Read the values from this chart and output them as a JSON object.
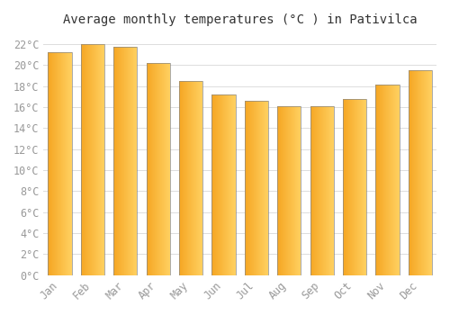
{
  "title": "Average monthly temperatures (°C ) in Pativilca",
  "months": [
    "Jan",
    "Feb",
    "Mar",
    "Apr",
    "May",
    "Jun",
    "Jul",
    "Aug",
    "Sep",
    "Oct",
    "Nov",
    "Dec"
  ],
  "values": [
    21.2,
    22.0,
    21.7,
    20.2,
    18.5,
    17.2,
    16.6,
    16.1,
    16.1,
    16.8,
    18.1,
    19.5
  ],
  "bar_color_left": "#F5A623",
  "bar_color_right": "#FFD060",
  "bar_edge_color": "#888888",
  "ylim": [
    0,
    23
  ],
  "ytick_step": 2,
  "background_color": "#FFFFFF",
  "grid_color": "#DDDDDD",
  "title_fontsize": 10,
  "tick_fontsize": 8.5,
  "tick_color": "#999999",
  "title_color": "#333333"
}
